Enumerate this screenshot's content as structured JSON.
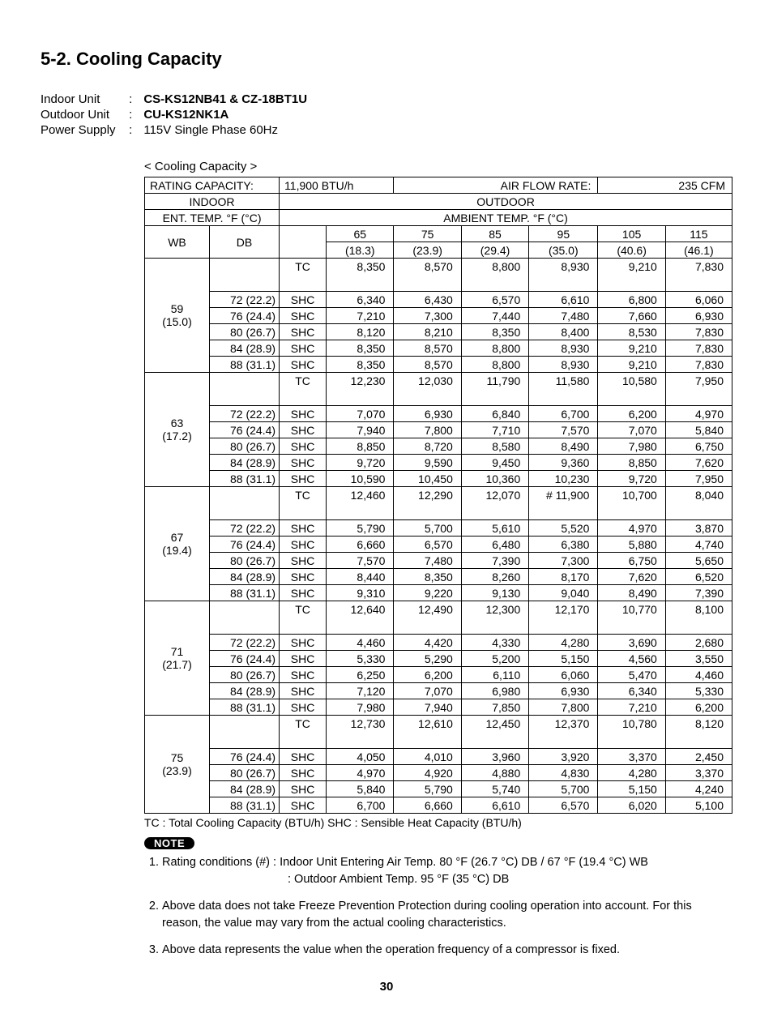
{
  "title": "5-2.  Cooling Capacity",
  "spec": {
    "indoor_label": "Indoor Unit",
    "indoor_value": "CS-KS12NB41 & CZ-18BT1U",
    "outdoor_label": "Outdoor Unit",
    "outdoor_value": "CU-KS12NK1A",
    "power_label": "Power Supply",
    "power_value": "115V Single Phase 60Hz"
  },
  "caption": "< Cooling Capacity >",
  "header": {
    "rating_label": "RATING CAPACITY:",
    "rating_value": "11,900 BTU/h",
    "airflow_label": "AIR FLOW RATE:",
    "airflow_value": "235 CFM",
    "indoor": "INDOOR",
    "outdoor": "OUTDOOR",
    "ent_temp": "ENT. TEMP. °F (°C)",
    "amb_temp": "AMBIENT TEMP. °F (°C)",
    "wb": "WB",
    "db": "DB",
    "ambient_cols": [
      {
        "f": "65",
        "c": "(18.3)"
      },
      {
        "f": "75",
        "c": "(23.9)"
      },
      {
        "f": "85",
        "c": "(29.4)"
      },
      {
        "f": "95",
        "c": "(35.0)"
      },
      {
        "f": "105",
        "c": "(40.6)"
      },
      {
        "f": "115",
        "c": "(46.1)"
      }
    ]
  },
  "groups": [
    {
      "wb": "59",
      "wb_c": "(15.0)",
      "tc": [
        "8,350",
        "8,570",
        "8,800",
        "8,930",
        "9,210",
        "7,830"
      ],
      "rows": [
        {
          "db": "72 (22.2)",
          "t": "SHC",
          "v": [
            "6,340",
            "6,430",
            "6,570",
            "6,610",
            "6,800",
            "6,060"
          ]
        },
        {
          "db": "76 (24.4)",
          "t": "SHC",
          "v": [
            "7,210",
            "7,300",
            "7,440",
            "7,480",
            "7,660",
            "6,930"
          ]
        },
        {
          "db": "80 (26.7)",
          "t": "SHC",
          "v": [
            "8,120",
            "8,210",
            "8,350",
            "8,400",
            "8,530",
            "7,830"
          ]
        },
        {
          "db": "84 (28.9)",
          "t": "SHC",
          "v": [
            "8,350",
            "8,570",
            "8,800",
            "8,930",
            "9,210",
            "7,830"
          ]
        },
        {
          "db": "88 (31.1)",
          "t": "SHC",
          "v": [
            "8,350",
            "8,570",
            "8,800",
            "8,930",
            "9,210",
            "7,830"
          ]
        }
      ]
    },
    {
      "wb": "63",
      "wb_c": "(17.2)",
      "tc": [
        "12,230",
        "12,030",
        "11,790",
        "11,580",
        "10,580",
        "7,950"
      ],
      "rows": [
        {
          "db": "72 (22.2)",
          "t": "SHC",
          "v": [
            "7,070",
            "6,930",
            "6,840",
            "6,700",
            "6,200",
            "4,970"
          ]
        },
        {
          "db": "76 (24.4)",
          "t": "SHC",
          "v": [
            "7,940",
            "7,800",
            "7,710",
            "7,570",
            "7,070",
            "5,840"
          ]
        },
        {
          "db": "80 (26.7)",
          "t": "SHC",
          "v": [
            "8,850",
            "8,720",
            "8,580",
            "8,490",
            "7,980",
            "6,750"
          ]
        },
        {
          "db": "84 (28.9)",
          "t": "SHC",
          "v": [
            "9,720",
            "9,590",
            "9,450",
            "9,360",
            "8,850",
            "7,620"
          ]
        },
        {
          "db": "88 (31.1)",
          "t": "SHC",
          "v": [
            "10,590",
            "10,450",
            "10,360",
            "10,230",
            "9,720",
            "7,950"
          ]
        }
      ]
    },
    {
      "wb": "67",
      "wb_c": "(19.4)",
      "tc": [
        "12,460",
        "12,290",
        "12,070",
        "# 11,900",
        "10,700",
        "8,040"
      ],
      "rows": [
        {
          "db": "72 (22.2)",
          "t": "SHC",
          "v": [
            "5,790",
            "5,700",
            "5,610",
            "5,520",
            "4,970",
            "3,870"
          ]
        },
        {
          "db": "76 (24.4)",
          "t": "SHC",
          "v": [
            "6,660",
            "6,570",
            "6,480",
            "6,380",
            "5,880",
            "4,740"
          ]
        },
        {
          "db": "80 (26.7)",
          "t": "SHC",
          "v": [
            "7,570",
            "7,480",
            "7,390",
            "7,300",
            "6,750",
            "5,650"
          ]
        },
        {
          "db": "84 (28.9)",
          "t": "SHC",
          "v": [
            "8,440",
            "8,350",
            "8,260",
            "8,170",
            "7,620",
            "6,520"
          ]
        },
        {
          "db": "88 (31.1)",
          "t": "SHC",
          "v": [
            "9,310",
            "9,220",
            "9,130",
            "9,040",
            "8,490",
            "7,390"
          ]
        }
      ]
    },
    {
      "wb": "71",
      "wb_c": "(21.7)",
      "tc": [
        "12,640",
        "12,490",
        "12,300",
        "12,170",
        "10,770",
        "8,100"
      ],
      "rows": [
        {
          "db": "72 (22.2)",
          "t": "SHC",
          "v": [
            "4,460",
            "4,420",
            "4,330",
            "4,280",
            "3,690",
            "2,680"
          ]
        },
        {
          "db": "76 (24.4)",
          "t": "SHC",
          "v": [
            "5,330",
            "5,290",
            "5,200",
            "5,150",
            "4,560",
            "3,550"
          ]
        },
        {
          "db": "80 (26.7)",
          "t": "SHC",
          "v": [
            "6,250",
            "6,200",
            "6,110",
            "6,060",
            "5,470",
            "4,460"
          ]
        },
        {
          "db": "84 (28.9)",
          "t": "SHC",
          "v": [
            "7,120",
            "7,070",
            "6,980",
            "6,930",
            "6,340",
            "5,330"
          ]
        },
        {
          "db": "88 (31.1)",
          "t": "SHC",
          "v": [
            "7,980",
            "7,940",
            "7,850",
            "7,800",
            "7,210",
            "6,200"
          ]
        }
      ]
    },
    {
      "wb": "75",
      "wb_c": "(23.9)",
      "tc": [
        "12,730",
        "12,610",
        "12,450",
        "12,370",
        "10,780",
        "8,120"
      ],
      "rows": [
        {
          "db": "76 (24.4)",
          "t": "SHC",
          "v": [
            "4,050",
            "4,010",
            "3,960",
            "3,920",
            "3,370",
            "2,450"
          ]
        },
        {
          "db": "80 (26.7)",
          "t": "SHC",
          "v": [
            "4,970",
            "4,920",
            "4,880",
            "4,830",
            "4,280",
            "3,370"
          ]
        },
        {
          "db": "84 (28.9)",
          "t": "SHC",
          "v": [
            "5,840",
            "5,790",
            "5,740",
            "5,700",
            "5,150",
            "4,240"
          ]
        },
        {
          "db": "88 (31.1)",
          "t": "SHC",
          "v": [
            "6,700",
            "6,660",
            "6,610",
            "6,570",
            "6,020",
            "5,100"
          ]
        }
      ]
    }
  ],
  "tc_label": "TC",
  "legend": "TC : Total Cooling Capacity (BTU/h)    SHC : Sensible Heat Capacity (BTU/h)",
  "note_badge": "NOTE",
  "notes": {
    "n1a": "Rating conditions (#)   :  Indoor Unit Entering Air Temp. 80 °F (26.7 °C) DB / 67 °F (19.4 °C) WB",
    "n1b": ":  Outdoor Ambient Temp. 95 °F (35 °C) DB",
    "n2": "Above data does not take Freeze Prevention Protection during cooling operation into account. For this reason, the value may vary from the actual cooling characteristics.",
    "n3": "Above data represents the value when the operation frequency of a compressor is fixed."
  },
  "page": "30",
  "col_widths": {
    "wb": 70,
    "db": 75,
    "type": 48,
    "data": 75
  }
}
